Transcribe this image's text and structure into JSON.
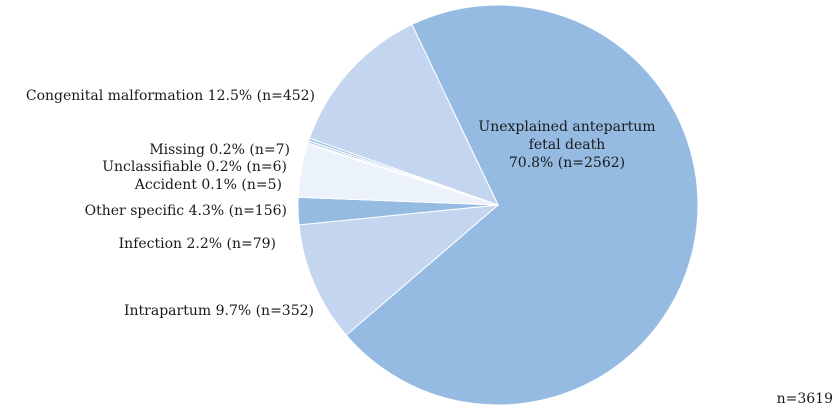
{
  "chart_data": {
    "type": "pie",
    "slices": [
      {
        "label": "Unexplained antepartum fetal death",
        "label_lines": [
          "Unexplained antepartum",
          "fetal death",
          "70.8% (n=2562)"
        ],
        "percent": 70.8,
        "n": 2562,
        "color": "#96bbe3"
      },
      {
        "label": "Intrapartum",
        "text": "Intrapartum 9.7% (n=352)",
        "percent": 9.7,
        "n": 352,
        "color": "#c4d6ef"
      },
      {
        "label": "Infection",
        "text": "Infection 2.2% (n=79)",
        "percent": 2.2,
        "n": 79,
        "color": "#96bbe3"
      },
      {
        "label": "Other specific",
        "text": "Other specific 4.3% (n=156)",
        "percent": 4.3,
        "n": 156,
        "color": "#ecf2fb"
      },
      {
        "label": "Accident",
        "text": "Accident 0.1% (n=5)",
        "percent": 0.1,
        "n": 5,
        "color": "#96bbe3"
      },
      {
        "label": "Unclassifiable",
        "text": "Unclassifiable 0.2% (n=6)",
        "percent": 0.2,
        "n": 6,
        "color": "#c4d6ef"
      },
      {
        "label": "Missing",
        "text": "Missing 0.2% (n=7)",
        "percent": 0.2,
        "n": 7,
        "color": "#96bbe3"
      },
      {
        "label": "Congenital malformation",
        "text": "Congenital malformation 12.5% (n=452)",
        "percent": 12.5,
        "n": 452,
        "color": "#c4d6ef"
      }
    ],
    "total_label": "n=3619"
  }
}
